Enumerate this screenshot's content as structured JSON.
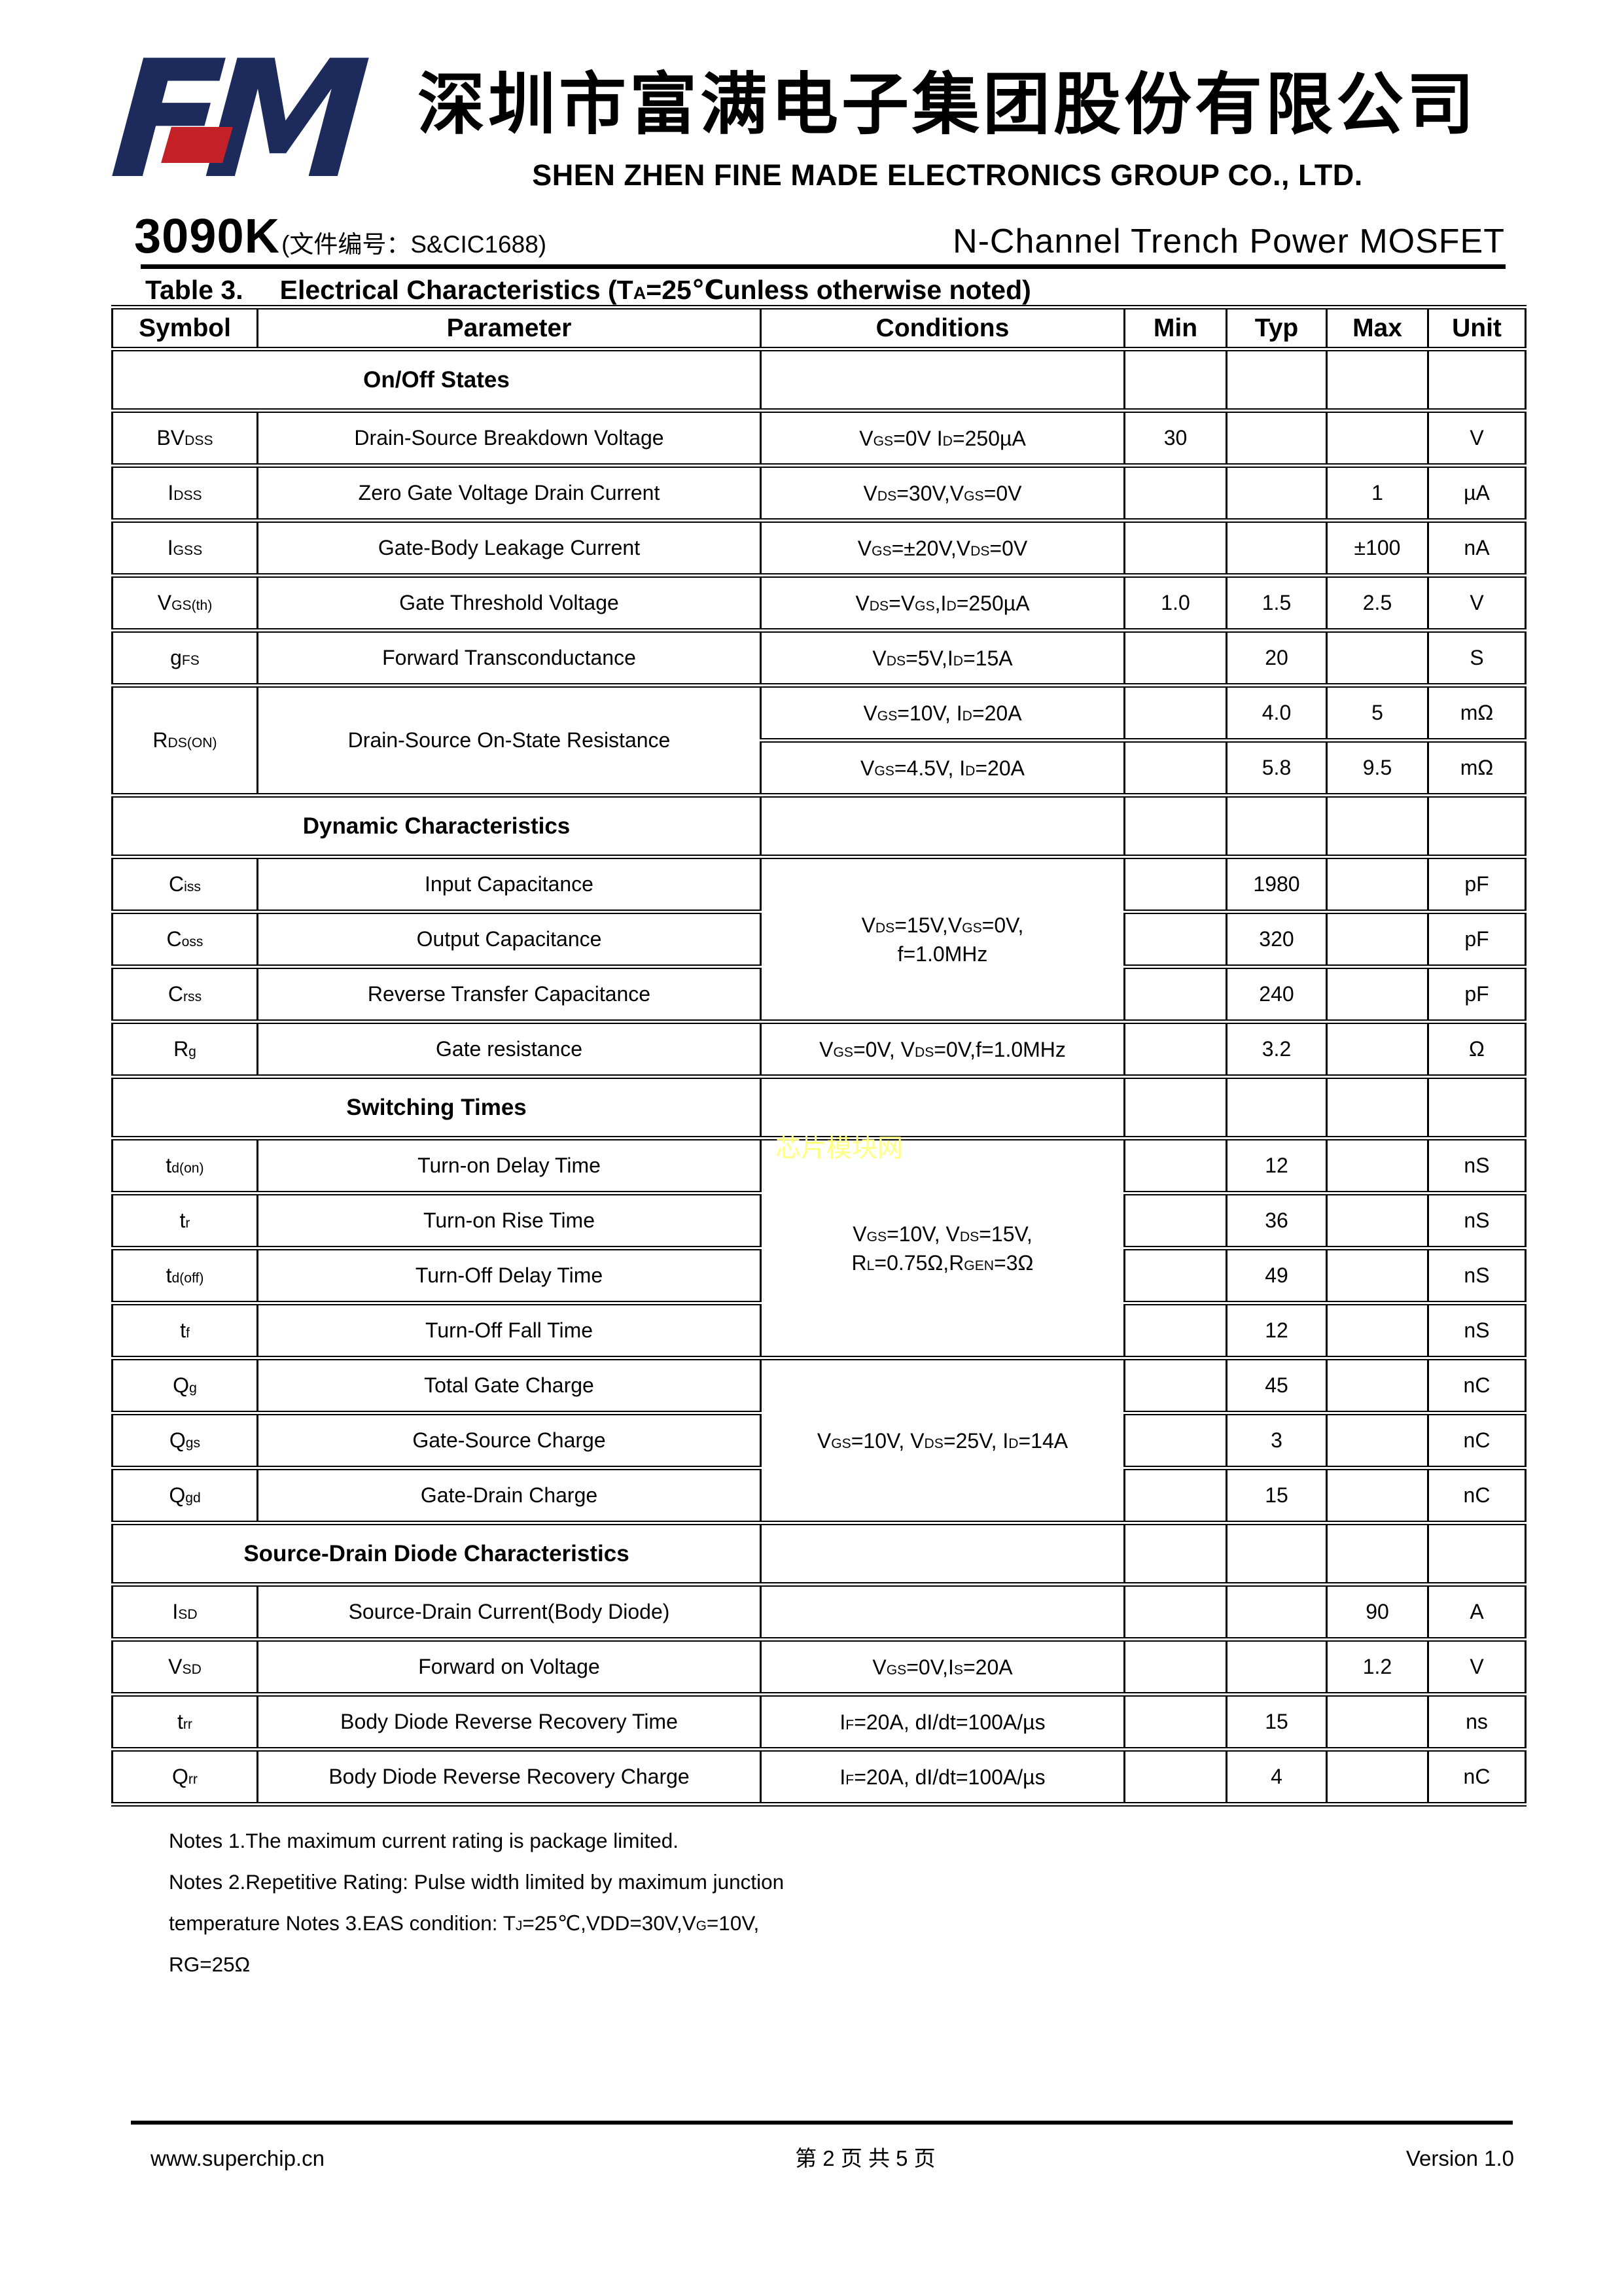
{
  "header": {
    "logo_text": "FM",
    "company_cn": "深圳市富满电子集团股份有限公司",
    "company_en": "SHEN ZHEN FINE MADE ELECTRONICS GROUP CO., LTD.",
    "part_number": "3090K",
    "doc_number": "(文件编号：S&CIC1688)",
    "subtitle": "N-Channel Trench Power MOSFET"
  },
  "table": {
    "title_label": "Table 3.",
    "title_text": "Electrical Characteristics (T~A~=25℃unless otherwise noted)",
    "columns": [
      "Symbol",
      "Parameter",
      "Conditions",
      "Min",
      "Typ",
      "Max",
      "Unit"
    ],
    "rows": [
      {
        "type": "section",
        "label": "On/Off States"
      },
      {
        "type": "data",
        "cells": [
          {
            "t": "BV~DSS~"
          },
          {
            "t": "Drain-Source Breakdown Voltage",
            "cls": "p"
          },
          {
            "t": "V~GS~=0V I~D~=250µA",
            "cls": "cond"
          },
          {
            "t": "30"
          },
          {
            "t": ""
          },
          {
            "t": ""
          },
          {
            "t": "V"
          }
        ]
      },
      {
        "type": "data",
        "cells": [
          {
            "t": "I~DSS~"
          },
          {
            "t": "Zero Gate Voltage Drain Current",
            "cls": "p"
          },
          {
            "t": "V~DS~=30V,V~GS~=0V",
            "cls": "cond"
          },
          {
            "t": ""
          },
          {
            "t": ""
          },
          {
            "t": "1"
          },
          {
            "t": "µA"
          }
        ]
      },
      {
        "type": "data",
        "cells": [
          {
            "t": "I~GSS~"
          },
          {
            "t": "Gate-Body Leakage Current",
            "cls": "p"
          },
          {
            "t": "V~GS~=±20V,V~DS~=0V",
            "cls": "cond"
          },
          {
            "t": ""
          },
          {
            "t": ""
          },
          {
            "t": "±100"
          },
          {
            "t": "nA"
          }
        ]
      },
      {
        "type": "data",
        "cells": [
          {
            "t": "V~GS(th)~"
          },
          {
            "t": "Gate Threshold Voltage",
            "cls": "p"
          },
          {
            "t": "V~DS~=V~GS~,I~D~=250µA",
            "cls": "cond"
          },
          {
            "t": "1.0"
          },
          {
            "t": "1.5"
          },
          {
            "t": "2.5"
          },
          {
            "t": "V"
          }
        ]
      },
      {
        "type": "data",
        "cells": [
          {
            "t": "g~FS~"
          },
          {
            "t": "Forward Transconductance",
            "cls": "p"
          },
          {
            "t": "V~DS~=5V,I~D~=15A",
            "cls": "cond"
          },
          {
            "t": ""
          },
          {
            "t": "20"
          },
          {
            "t": ""
          },
          {
            "t": "S"
          }
        ]
      },
      {
        "type": "data",
        "cells": [
          {
            "t": "R~DS(ON)~",
            "rs": 2
          },
          {
            "t": "Drain-Source On-State Resistance",
            "cls": "p",
            "rs": 2
          },
          {
            "t": "V~GS~=10V, I~D~=20A",
            "cls": "cond"
          },
          {
            "t": ""
          },
          {
            "t": "4.0"
          },
          {
            "t": "5"
          },
          {
            "t": "mΩ"
          }
        ]
      },
      {
        "type": "data",
        "cells": [
          {
            "t": "V~GS~=4.5V, I~D~=20A",
            "cls": "cond"
          },
          {
            "t": ""
          },
          {
            "t": "5.8"
          },
          {
            "t": "9.5"
          },
          {
            "t": "mΩ"
          }
        ]
      },
      {
        "type": "section",
        "label": "Dynamic Characteristics"
      },
      {
        "type": "data",
        "cells": [
          {
            "t": "C~iss~"
          },
          {
            "t": "Input Capacitance",
            "cls": "p"
          },
          {
            "t": "V~DS~=15V,V~GS~=0V,\nf=1.0MHz",
            "cls": "cond",
            "rs": 3
          },
          {
            "t": ""
          },
          {
            "t": "1980"
          },
          {
            "t": ""
          },
          {
            "t": "pF"
          }
        ]
      },
      {
        "type": "data",
        "cells": [
          {
            "t": "C~oss~"
          },
          {
            "t": "Output Capacitance",
            "cls": "p"
          },
          {
            "t": ""
          },
          {
            "t": "320"
          },
          {
            "t": ""
          },
          {
            "t": "pF"
          }
        ]
      },
      {
        "type": "data",
        "cells": [
          {
            "t": "C~rss~"
          },
          {
            "t": "Reverse Transfer Capacitance",
            "cls": "p"
          },
          {
            "t": ""
          },
          {
            "t": "240"
          },
          {
            "t": ""
          },
          {
            "t": "pF"
          }
        ]
      },
      {
        "type": "data",
        "cells": [
          {
            "t": "R~g~"
          },
          {
            "t": "Gate resistance",
            "cls": "p"
          },
          {
            "t": "V~GS~=0V, V~DS~=0V,f=1.0MHz",
            "cls": "cond"
          },
          {
            "t": ""
          },
          {
            "t": "3.2"
          },
          {
            "t": ""
          },
          {
            "t": "Ω"
          }
        ]
      },
      {
        "type": "section",
        "label": "Switching Times"
      },
      {
        "type": "data",
        "cells": [
          {
            "t": "t~d(on)~"
          },
          {
            "t": "Turn-on Delay Time",
            "cls": "p"
          },
          {
            "t": "V~GS~=10V, V~DS~=15V,\nR~L~=0.75Ω,R~GEN~=3Ω",
            "cls": "cond",
            "rs": 4
          },
          {
            "t": ""
          },
          {
            "t": "12"
          },
          {
            "t": ""
          },
          {
            "t": "nS"
          }
        ]
      },
      {
        "type": "data",
        "cells": [
          {
            "t": "t~r~"
          },
          {
            "t": "Turn-on Rise Time",
            "cls": "p"
          },
          {
            "t": ""
          },
          {
            "t": "36"
          },
          {
            "t": ""
          },
          {
            "t": "nS"
          }
        ]
      },
      {
        "type": "data",
        "cells": [
          {
            "t": "t~d(off)~"
          },
          {
            "t": "Turn-Off Delay Time",
            "cls": "p"
          },
          {
            "t": ""
          },
          {
            "t": "49"
          },
          {
            "t": ""
          },
          {
            "t": "nS"
          }
        ]
      },
      {
        "type": "data",
        "cells": [
          {
            "t": "t~f~"
          },
          {
            "t": "Turn-Off Fall Time",
            "cls": "p"
          },
          {
            "t": ""
          },
          {
            "t": "12"
          },
          {
            "t": ""
          },
          {
            "t": "nS"
          }
        ]
      },
      {
        "type": "data",
        "cells": [
          {
            "t": "Q~g~"
          },
          {
            "t": "Total Gate Charge",
            "cls": "p"
          },
          {
            "t": "V~GS~=10V, V~DS~=25V, I~D~=14A",
            "cls": "cond",
            "rs": 3
          },
          {
            "t": ""
          },
          {
            "t": "45"
          },
          {
            "t": ""
          },
          {
            "t": "nC"
          }
        ]
      },
      {
        "type": "data",
        "cells": [
          {
            "t": "Q~gs~"
          },
          {
            "t": "Gate-Source Charge",
            "cls": "p"
          },
          {
            "t": ""
          },
          {
            "t": "3"
          },
          {
            "t": ""
          },
          {
            "t": "nC"
          }
        ]
      },
      {
        "type": "data",
        "cells": [
          {
            "t": "Q~gd~"
          },
          {
            "t": "Gate-Drain Charge",
            "cls": "p"
          },
          {
            "t": ""
          },
          {
            "t": "15"
          },
          {
            "t": ""
          },
          {
            "t": "nC"
          }
        ]
      },
      {
        "type": "section",
        "label": "Source-Drain Diode Characteristics"
      },
      {
        "type": "data",
        "cells": [
          {
            "t": "I~SD~"
          },
          {
            "t": "Source-Drain Current(Body Diode)",
            "cls": "p"
          },
          {
            "t": "",
            "cls": "cond"
          },
          {
            "t": ""
          },
          {
            "t": ""
          },
          {
            "t": "90"
          },
          {
            "t": "A"
          }
        ]
      },
      {
        "type": "data",
        "cells": [
          {
            "t": "V~SD~"
          },
          {
            "t": "Forward on Voltage",
            "cls": "p"
          },
          {
            "t": "V~GS~=0V,I~S~=20A",
            "cls": "cond"
          },
          {
            "t": ""
          },
          {
            "t": ""
          },
          {
            "t": "1.2"
          },
          {
            "t": "V"
          }
        ]
      },
      {
        "type": "data",
        "cells": [
          {
            "t": "t~rr~"
          },
          {
            "t": "Body Diode Reverse Recovery Time",
            "cls": "p"
          },
          {
            "t": "I~F~=20A, dI/dt=100A/µs",
            "cls": "cond"
          },
          {
            "t": ""
          },
          {
            "t": "15"
          },
          {
            "t": ""
          },
          {
            "t": "ns"
          }
        ]
      },
      {
        "type": "data",
        "cells": [
          {
            "t": "Q~rr~"
          },
          {
            "t": "Body Diode Reverse Recovery Charge",
            "cls": "p"
          },
          {
            "t": "I~F~=20A, dI/dt=100A/µs",
            "cls": "cond"
          },
          {
            "t": ""
          },
          {
            "t": "4"
          },
          {
            "t": ""
          },
          {
            "t": "nC"
          }
        ]
      }
    ]
  },
  "watermark": "芯片模块网",
  "notes": [
    "Notes 1.The maximum current rating is package limited.",
    "Notes 2.Repetitive Rating: Pulse width limited by maximum junction",
    "temperature Notes 3.EAS condition: T~J~=25℃,VDD=30V,V~G~=10V,",
    "RG=25Ω"
  ],
  "footer": {
    "website": "www.superchip.cn",
    "page_info": "第 2 页 共 5 页",
    "version": "Version 1.0"
  },
  "colors": {
    "logo_navy": "#1d2b5c",
    "logo_red": "#c32127",
    "watermark_yellow": "#ffff82"
  }
}
